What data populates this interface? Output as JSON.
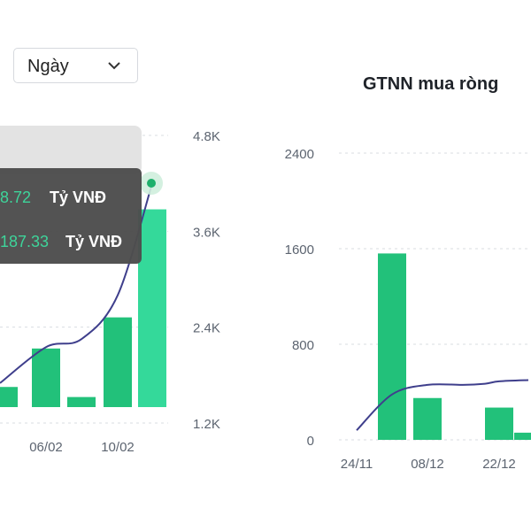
{
  "controls": {
    "period_select": {
      "value": "Ngày",
      "icon": "chevron-down-icon"
    }
  },
  "colors": {
    "bar": "#22c17a",
    "bar_highlight": "#34d99a",
    "line": "#3f3f8c",
    "positive_text": "#3ed49a",
    "tooltip_bg": "#4d4d4d",
    "grid": "#d9dde2",
    "axis_text": "#5c6470"
  },
  "tooltip": {
    "rows": [
      {
        "value": "8.72",
        "unit": "Tỷ VNĐ"
      },
      {
        "value": "187.33",
        "unit": "Tỷ VNĐ"
      }
    ]
  },
  "chart_data": [
    {
      "type": "bar",
      "title": "",
      "categories": [
        "",
        "06/02",
        "",
        "10/02",
        ""
      ],
      "series": [
        {
          "type": "bar",
          "axis": "left",
          "values": [
            110,
            320,
            55,
            490,
            1080
          ]
        },
        {
          "type": "line",
          "axis": "right",
          "values": [
            1700,
            2150,
            2250,
            2800,
            4200
          ]
        }
      ],
      "y2_ticks": [
        "1.2K",
        "2.4K",
        "3.6K",
        "4.8K"
      ],
      "ylim": [
        0,
        1450
      ],
      "y2lim": [
        1200,
        4800
      ],
      "grid": true,
      "tooltip_shown": true
    },
    {
      "type": "bar",
      "title": "GTNN mua ròng",
      "categories": [
        "24/11",
        "",
        "08/12",
        "",
        "",
        "22/12",
        ""
      ],
      "series": [
        {
          "type": "bar",
          "axis": "left",
          "values": [
            0,
            1560,
            350,
            0,
            0,
            270,
            60
          ]
        },
        {
          "type": "line",
          "axis": "left",
          "values": [
            80,
            380,
            460,
            460,
            470,
            490,
            500
          ]
        }
      ],
      "y_ticks": [
        "0",
        "800",
        "1600",
        "2400"
      ],
      "ylim": [
        0,
        2400
      ],
      "grid": true
    }
  ]
}
